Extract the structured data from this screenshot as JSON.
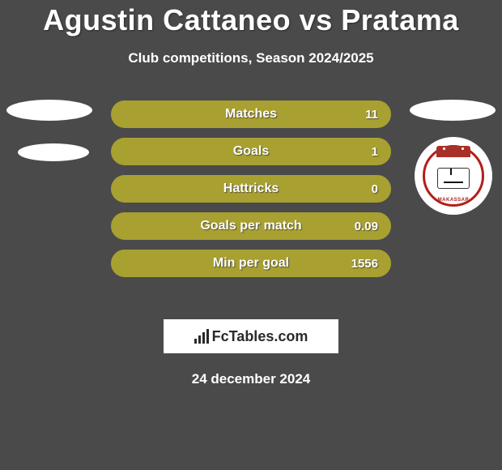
{
  "title": "Agustin Cattaneo vs Pratama",
  "subtitle": "Club competitions, Season 2024/2025",
  "accent_color": "#a8a030",
  "stats": [
    {
      "label": "Matches",
      "value": "11"
    },
    {
      "label": "Goals",
      "value": "1"
    },
    {
      "label": "Hattricks",
      "value": "0"
    },
    {
      "label": "Goals per match",
      "value": "0.09"
    },
    {
      "label": "Min per goal",
      "value": "1556"
    }
  ],
  "branding": {
    "text": "FcTables.com"
  },
  "date": "24 december 2024",
  "badge": {
    "name": "psm-makassar",
    "label": "MAKASSAR",
    "ring_color": "#b02018"
  }
}
